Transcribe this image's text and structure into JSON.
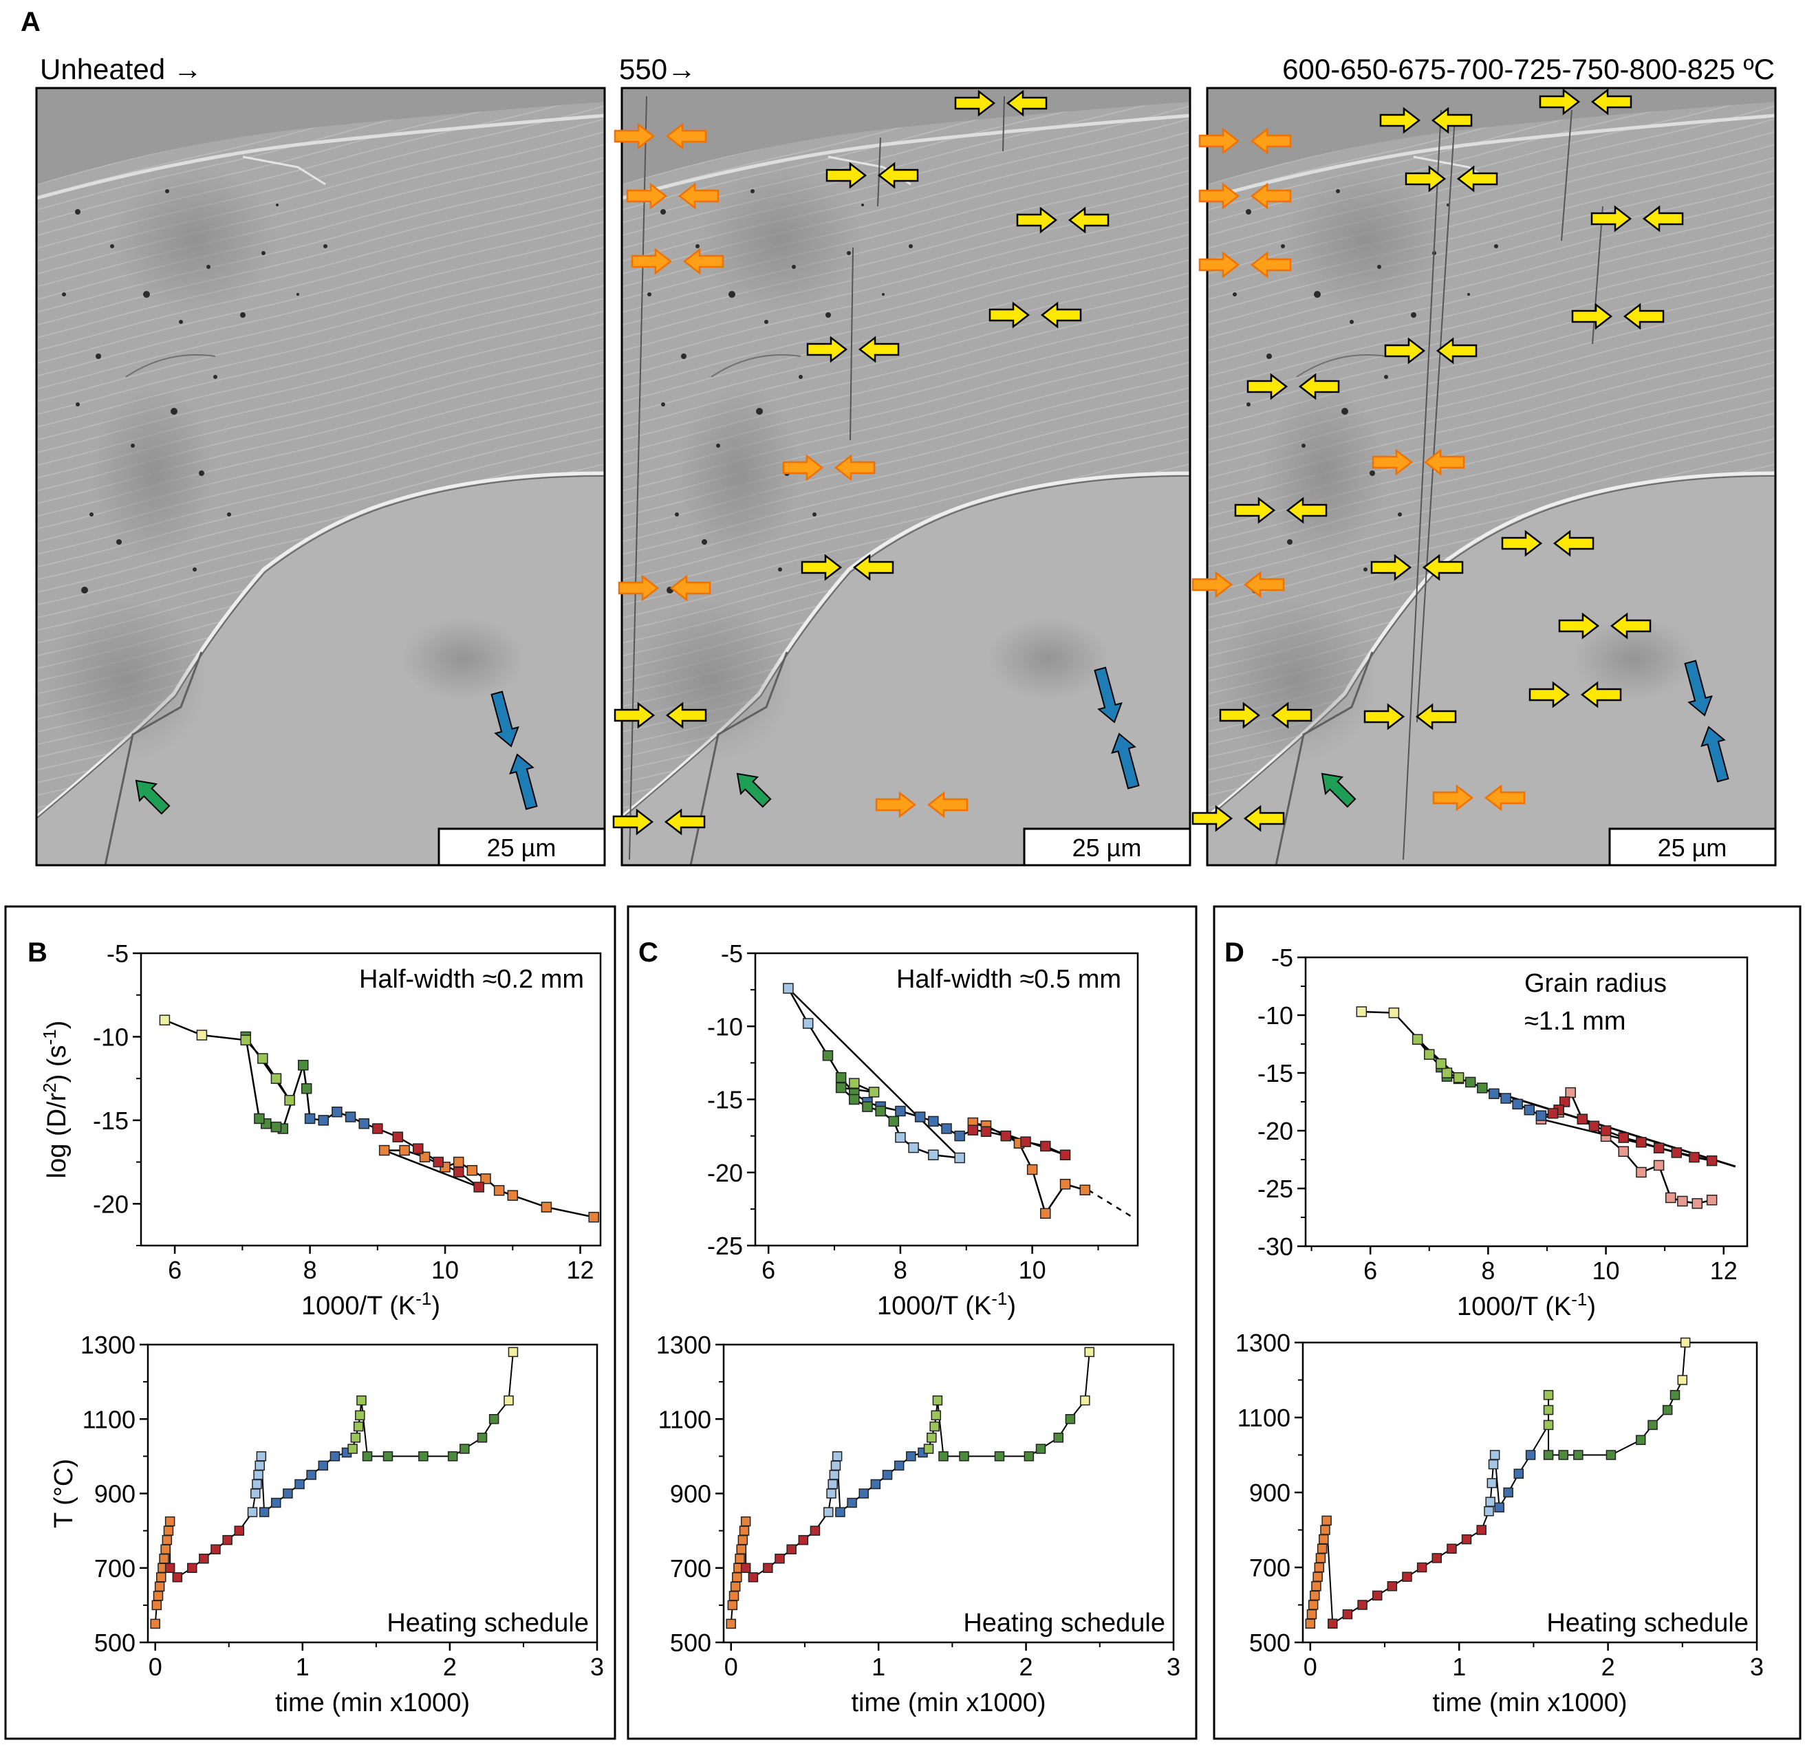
{
  "panel_a": {
    "letter": "A",
    "label_unheated": "Unheated →",
    "label_550": "550→",
    "label_steps": "600-650-675-700-725-750-800-825 ºC",
    "scale_bar": "25 µm"
  },
  "panels": {
    "b": {
      "letter": "B"
    },
    "c": {
      "letter": "C"
    },
    "d": {
      "letter": "D"
    }
  },
  "colors": {
    "ivory": "#f2eea2",
    "green": "#4c8a3c",
    "lightgreen": "#9cc558",
    "blue": "#3f6fad",
    "lightblue": "#a6c6e6",
    "red": "#b4292e",
    "orange": "#e8823a",
    "pink": "#e79a90",
    "arrow_yellow": "#ffe800",
    "arrow_orange": "#ffa018",
    "arrow_blue": "#1f7db5",
    "arrow_green": "#1f9e55"
  },
  "chart_data": [
    {
      "id": "B-arrhenius",
      "type": "scatter",
      "annotation": "Half-width ≈0.2 mm",
      "xlabel": "1000/T (K",
      "xlabel_sup": "-1",
      "xlabel_end": ")",
      "ylabel": "log (D/r",
      "ylabel_sup1": "2",
      "ylabel_mid": ") (s",
      "ylabel_sup2": "-1",
      "ylabel_end": ")",
      "xlim": [
        5.5,
        12.3
      ],
      "ylim": [
        -22.5,
        -5
      ],
      "xticks": [
        "6",
        "8",
        "10",
        "12"
      ],
      "yticks": [
        "-5",
        "-10",
        "-15",
        "-20"
      ],
      "x": [
        12.2,
        11.5,
        11.0,
        10.8,
        10.6,
        10.4,
        10.2,
        10.0,
        9.7,
        9.4,
        9.1,
        10.5,
        10.2,
        9.9,
        9.6,
        9.3,
        9.0,
        8.8,
        8.6,
        8.4,
        8.2,
        8.0,
        7.95,
        7.9,
        7.6,
        7.5,
        7.35,
        7.25,
        7.05,
        7.7,
        7.5,
        7.3,
        7.05,
        6.4,
        5.85
      ],
      "y": [
        -20.8,
        -20.2,
        -19.5,
        -19.2,
        -18.5,
        -18.0,
        -17.5,
        -17.8,
        -17.2,
        -16.8,
        -16.8,
        -19.0,
        -18.1,
        -17.5,
        -16.7,
        -16.0,
        -15.5,
        -15.2,
        -14.8,
        -14.5,
        -15.0,
        -14.9,
        -13.1,
        -11.7,
        -15.5,
        -15.4,
        -15.2,
        -14.9,
        -10.0,
        -13.8,
        -12.5,
        -11.3,
        -10.2,
        -9.9,
        -9.0
      ],
      "colors": [
        "orange",
        "orange",
        "orange",
        "orange",
        "orange",
        "orange",
        "orange",
        "orange",
        "orange",
        "orange",
        "orange",
        "red",
        "red",
        "red",
        "red",
        "red",
        "red",
        "blue",
        "blue",
        "blue",
        "blue",
        "blue",
        "green",
        "green",
        "green",
        "green",
        "green",
        "green",
        "green",
        "lightgreen",
        "lightgreen",
        "lightgreen",
        "lightgreen",
        "ivory",
        "ivory"
      ],
      "line_order": [
        0,
        1,
        2,
        3,
        4,
        5,
        6,
        7,
        8,
        9,
        10,
        11,
        12,
        13,
        14,
        15,
        16,
        17,
        18,
        19,
        20,
        21,
        22,
        23,
        24,
        25,
        26,
        27,
        28,
        29,
        30,
        31,
        32,
        33,
        34
      ]
    },
    {
      "id": "C-arrhenius",
      "type": "scatter",
      "annotation": "Half-width ≈0.5 mm",
      "xlabel": "1000/T (K",
      "xlabel_sup": "-1",
      "xlabel_end": ")",
      "xlim": [
        5.8,
        11.6
      ],
      "ylim": [
        -25,
        -5
      ],
      "xticks": [
        "6",
        "8",
        "10"
      ],
      "yticks": [
        "-5",
        "-10",
        "-15",
        "-20",
        "-25"
      ],
      "x": [
        10.8,
        10.5,
        10.2,
        10.0,
        9.8,
        9.6,
        9.3,
        9.1,
        10.5,
        10.2,
        9.9,
        9.6,
        9.3,
        9.1,
        8.9,
        8.7,
        8.5,
        8.3,
        8.0,
        7.7,
        7.5,
        7.3,
        7.1,
        6.9,
        6.6,
        6.3,
        8.9,
        8.5,
        8.2,
        8.0,
        7.9,
        7.7,
        7.5,
        7.3,
        7.1,
        7.6,
        7.3
      ],
      "y": [
        -21.2,
        -20.8,
        -22.8,
        -19.8,
        -18.0,
        -17.5,
        -16.8,
        -16.6,
        -18.8,
        -18.2,
        -17.9,
        -17.5,
        -17.2,
        -17.1,
        -17.5,
        -17.0,
        -16.5,
        -16.2,
        -15.8,
        -15.5,
        -15.2,
        -14.6,
        -13.5,
        -12.0,
        -9.8,
        -7.4,
        -19.0,
        -18.8,
        -18.3,
        -17.6,
        -16.5,
        -15.8,
        -15.5,
        -15.0,
        -14.2,
        -14.5,
        -13.9
      ],
      "colors": [
        "orange",
        "orange",
        "orange",
        "orange",
        "orange",
        "orange",
        "orange",
        "orange",
        "red",
        "red",
        "red",
        "red",
        "red",
        "red",
        "blue",
        "blue",
        "blue",
        "blue",
        "blue",
        "blue",
        "blue",
        "green",
        "green",
        "green",
        "lightblue",
        "lightblue",
        "lightblue",
        "lightblue",
        "lightblue",
        "lightblue",
        "green",
        "green",
        "green",
        "green",
        "green",
        "lightgreen",
        "lightgreen"
      ],
      "dashed_extension": [
        [
          10.85,
          -21.2
        ],
        [
          11.5,
          -23.0
        ]
      ]
    },
    {
      "id": "D-arrhenius",
      "type": "scatter",
      "annotation_line1": "Grain radius",
      "annotation_line2": "≈1.1 mm",
      "xlabel": "1000/T (K",
      "xlabel_sup": "-1",
      "xlabel_end": ")",
      "xlim": [
        4.9,
        12.4
      ],
      "ylim": [
        -30,
        -5
      ],
      "xticks": [
        "6",
        "8",
        "10",
        "12"
      ],
      "yticks": [
        "-5",
        "-10",
        "-15",
        "-20",
        "-25",
        "-30"
      ],
      "x": [
        11.8,
        11.55,
        11.3,
        11.1,
        10.9,
        10.6,
        10.3,
        10.0,
        9.6,
        9.2,
        8.9,
        11.8,
        11.5,
        11.2,
        10.9,
        10.6,
        10.3,
        10.0,
        9.8,
        9.6,
        9.4,
        9.3,
        9.2,
        9.1,
        8.9,
        8.7,
        8.5,
        8.3,
        8.1,
        7.9,
        7.7,
        7.5,
        7.3,
        7.2,
        7.0,
        6.8,
        7.5,
        7.3,
        7.2,
        6.4,
        5.85
      ],
      "y": [
        -26.0,
        -26.3,
        -26.1,
        -25.8,
        -23.0,
        -23.6,
        -21.8,
        -20.5,
        -19.0,
        -18.4,
        -19.0,
        -22.6,
        -22.3,
        -21.9,
        -21.5,
        -21.0,
        -20.6,
        -20.0,
        -19.6,
        -19.0,
        -16.7,
        -17.5,
        -18.2,
        -18.5,
        -18.7,
        -18.2,
        -17.7,
        -17.2,
        -16.8,
        -16.3,
        -15.8,
        -15.5,
        -15.3,
        -14.5,
        -13.4,
        -12.1,
        -15.4,
        -15.0,
        -14.2,
        -9.8,
        -9.7
      ],
      "colors": [
        "pink",
        "pink",
        "pink",
        "pink",
        "pink",
        "pink",
        "pink",
        "pink",
        "pink",
        "pink",
        "pink",
        "red",
        "red",
        "red",
        "red",
        "red",
        "red",
        "red",
        "red",
        "red",
        "pink",
        "red",
        "red",
        "red",
        "blue",
        "blue",
        "blue",
        "blue",
        "blue",
        "green",
        "green",
        "green",
        "green",
        "green",
        "lightgreen",
        "lightgreen",
        "lightgreen",
        "lightgreen",
        "lightgreen",
        "ivory",
        "ivory"
      ],
      "straight_line": [
        [
          8.0,
          -16.5
        ],
        [
          12.2,
          -23.1
        ]
      ]
    },
    {
      "id": "B-schedule",
      "type": "scatter",
      "ylabel": "T (°C)",
      "xlabel": "time (min x1000)",
      "annotation": "Heating schedule",
      "xlim": [
        -0.05,
        3.0
      ],
      "ylim": [
        500,
        1300
      ],
      "xticks": [
        "0",
        "1",
        "2",
        "3"
      ],
      "yticks": [
        "500",
        "700",
        "900",
        "1100",
        "1300"
      ],
      "x": [
        0.0,
        0.01,
        0.02,
        0.03,
        0.04,
        0.05,
        0.06,
        0.07,
        0.08,
        0.09,
        0.1,
        0.1,
        0.15,
        0.25,
        0.33,
        0.41,
        0.49,
        0.57,
        0.66,
        0.68,
        0.69,
        0.7,
        0.71,
        0.72,
        0.74,
        0.82,
        0.9,
        0.98,
        1.06,
        1.14,
        1.22,
        1.3,
        1.34,
        1.36,
        1.38,
        1.39,
        1.4,
        1.44,
        1.58,
        1.82,
        2.02,
        2.1,
        2.22,
        2.3,
        2.4,
        2.43
      ],
      "y": [
        550,
        600,
        625,
        650,
        675,
        700,
        725,
        750,
        775,
        800,
        825,
        700,
        675,
        700,
        725,
        750,
        775,
        800,
        850,
        900,
        925,
        950,
        975,
        1000,
        850,
        875,
        900,
        925,
        950,
        975,
        1000,
        1010,
        1020,
        1050,
        1080,
        1110,
        1150,
        1000,
        1000,
        1000,
        1000,
        1020,
        1050,
        1100,
        1150,
        1280
      ],
      "colors": [
        "orange",
        "orange",
        "orange",
        "orange",
        "orange",
        "orange",
        "orange",
        "orange",
        "orange",
        "orange",
        "orange",
        "red",
        "red",
        "red",
        "red",
        "red",
        "red",
        "red",
        "lightblue",
        "lightblue",
        "lightblue",
        "lightblue",
        "lightblue",
        "lightblue",
        "blue",
        "blue",
        "blue",
        "blue",
        "blue",
        "blue",
        "blue",
        "blue",
        "lightgreen",
        "lightgreen",
        "lightgreen",
        "lightgreen",
        "lightgreen",
        "green",
        "green",
        "green",
        "green",
        "green",
        "green",
        "green",
        "ivory",
        "ivory"
      ]
    },
    {
      "id": "C-schedule",
      "type": "scatter",
      "xlabel": "time (min x1000)",
      "annotation": "Heating schedule",
      "xlim": [
        -0.05,
        3.0
      ],
      "ylim": [
        500,
        1300
      ],
      "xticks": [
        "0",
        "1",
        "2",
        "3"
      ],
      "yticks": [
        "500",
        "700",
        "900",
        "1100",
        "1300"
      ],
      "x": [
        0.0,
        0.01,
        0.02,
        0.03,
        0.04,
        0.05,
        0.06,
        0.07,
        0.08,
        0.09,
        0.1,
        0.1,
        0.15,
        0.25,
        0.33,
        0.41,
        0.49,
        0.57,
        0.66,
        0.68,
        0.69,
        0.7,
        0.71,
        0.72,
        0.74,
        0.82,
        0.9,
        0.98,
        1.06,
        1.14,
        1.22,
        1.3,
        1.34,
        1.36,
        1.38,
        1.39,
        1.4,
        1.44,
        1.58,
        1.82,
        2.02,
        2.1,
        2.22,
        2.3,
        2.4,
        2.43
      ],
      "y": [
        550,
        600,
        625,
        650,
        675,
        700,
        725,
        750,
        775,
        800,
        825,
        700,
        675,
        700,
        725,
        750,
        775,
        800,
        850,
        900,
        925,
        950,
        975,
        1000,
        850,
        875,
        900,
        925,
        950,
        975,
        1000,
        1010,
        1020,
        1050,
        1080,
        1110,
        1150,
        1000,
        1000,
        1000,
        1000,
        1020,
        1050,
        1100,
        1150,
        1280
      ],
      "colors": [
        "orange",
        "orange",
        "orange",
        "orange",
        "orange",
        "orange",
        "orange",
        "orange",
        "orange",
        "orange",
        "orange",
        "red",
        "red",
        "red",
        "red",
        "red",
        "red",
        "red",
        "lightblue",
        "lightblue",
        "lightblue",
        "lightblue",
        "lightblue",
        "lightblue",
        "blue",
        "blue",
        "blue",
        "blue",
        "blue",
        "blue",
        "blue",
        "blue",
        "lightgreen",
        "lightgreen",
        "lightgreen",
        "lightgreen",
        "lightgreen",
        "green",
        "green",
        "green",
        "green",
        "green",
        "green",
        "green",
        "ivory",
        "ivory"
      ]
    },
    {
      "id": "D-schedule",
      "type": "scatter",
      "xlabel": "time (min x1000)",
      "annotation": "Heating schedule",
      "xlim": [
        -0.05,
        3.0
      ],
      "ylim": [
        500,
        1300
      ],
      "xticks": [
        "0",
        "1",
        "2",
        "3"
      ],
      "yticks": [
        "500",
        "700",
        "900",
        "1100",
        "1300"
      ],
      "x": [
        0.0,
        0.01,
        0.02,
        0.03,
        0.04,
        0.05,
        0.06,
        0.07,
        0.08,
        0.09,
        0.1,
        0.11,
        0.15,
        0.25,
        0.35,
        0.45,
        0.55,
        0.65,
        0.75,
        0.85,
        0.95,
        1.05,
        1.15,
        1.2,
        1.21,
        1.22,
        1.23,
        1.24,
        1.27,
        1.33,
        1.4,
        1.48,
        1.6,
        1.6,
        1.6,
        1.6,
        1.7,
        1.8,
        2.02,
        2.22,
        2.3,
        2.4,
        2.45,
        2.5,
        2.52
      ],
      "y": [
        550,
        575,
        600,
        625,
        650,
        675,
        700,
        725,
        750,
        775,
        800,
        825,
        550,
        575,
        600,
        625,
        650,
        675,
        700,
        725,
        750,
        775,
        800,
        850,
        875,
        925,
        975,
        1000,
        860,
        900,
        950,
        1000,
        1080,
        1120,
        1160,
        1000,
        1000,
        1000,
        1000,
        1040,
        1080,
        1120,
        1160,
        1200,
        1300
      ],
      "colors": [
        "orange",
        "orange",
        "orange",
        "orange",
        "orange",
        "orange",
        "orange",
        "orange",
        "orange",
        "orange",
        "orange",
        "orange",
        "red",
        "red",
        "red",
        "red",
        "red",
        "red",
        "red",
        "red",
        "red",
        "red",
        "red",
        "lightblue",
        "lightblue",
        "lightblue",
        "lightblue",
        "lightblue",
        "blue",
        "blue",
        "blue",
        "blue",
        "lightgreen",
        "lightgreen",
        "lightgreen",
        "green",
        "green",
        "green",
        "green",
        "green",
        "green",
        "green",
        "green",
        "ivory",
        "ivory"
      ]
    }
  ]
}
